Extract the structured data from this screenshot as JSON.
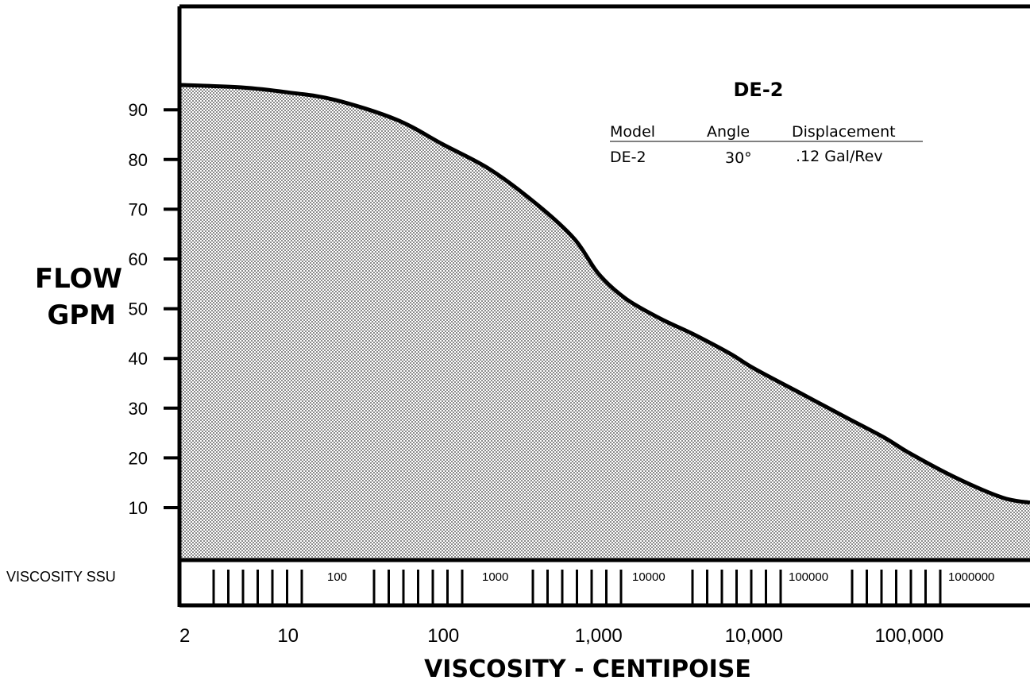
{
  "chart_data": {
    "type": "area",
    "ylabel_lines": [
      "FLOW",
      "GPM"
    ],
    "xlabel": "VISCOSITY - CENTIPOISE",
    "x_scale": "log",
    "xlim": [
      2,
      600000
    ],
    "ylim": [
      0,
      100
    ],
    "yticks": [
      10,
      20,
      30,
      40,
      50,
      60,
      70,
      80,
      90
    ],
    "xticks": [
      {
        "value": 2,
        "label": "2"
      },
      {
        "value": 10,
        "label": "10"
      },
      {
        "value": 100,
        "label": "100"
      },
      {
        "value": 1000,
        "label": "1,000"
      },
      {
        "value": 10000,
        "label": "10,000"
      },
      {
        "value": 100000,
        "label": "100,000"
      }
    ],
    "ssu_axis": {
      "title": "VISCOSITY SSU",
      "labels": [
        "100",
        "1000",
        "10000",
        "100000",
        "1000000"
      ]
    },
    "series": [
      {
        "x": [
          2,
          5,
          10,
          20,
          50,
          100,
          200,
          400,
          700,
          1000,
          1500,
          2500,
          4000,
          7000,
          10000,
          20000,
          40000,
          70000,
          100000,
          200000,
          400000,
          600000
        ],
        "y": [
          95,
          94.5,
          93.5,
          92,
          88,
          83,
          78,
          71,
          64,
          57,
          52,
          48,
          45,
          41,
          38,
          33,
          28,
          24,
          21,
          16,
          12,
          11
        ]
      }
    ],
    "legend": {
      "title": "DE-2",
      "headers": [
        "Model",
        "Angle",
        "Displacement"
      ],
      "row": [
        "DE-2",
        "30°",
        ".12 Gal/Rev"
      ]
    }
  }
}
